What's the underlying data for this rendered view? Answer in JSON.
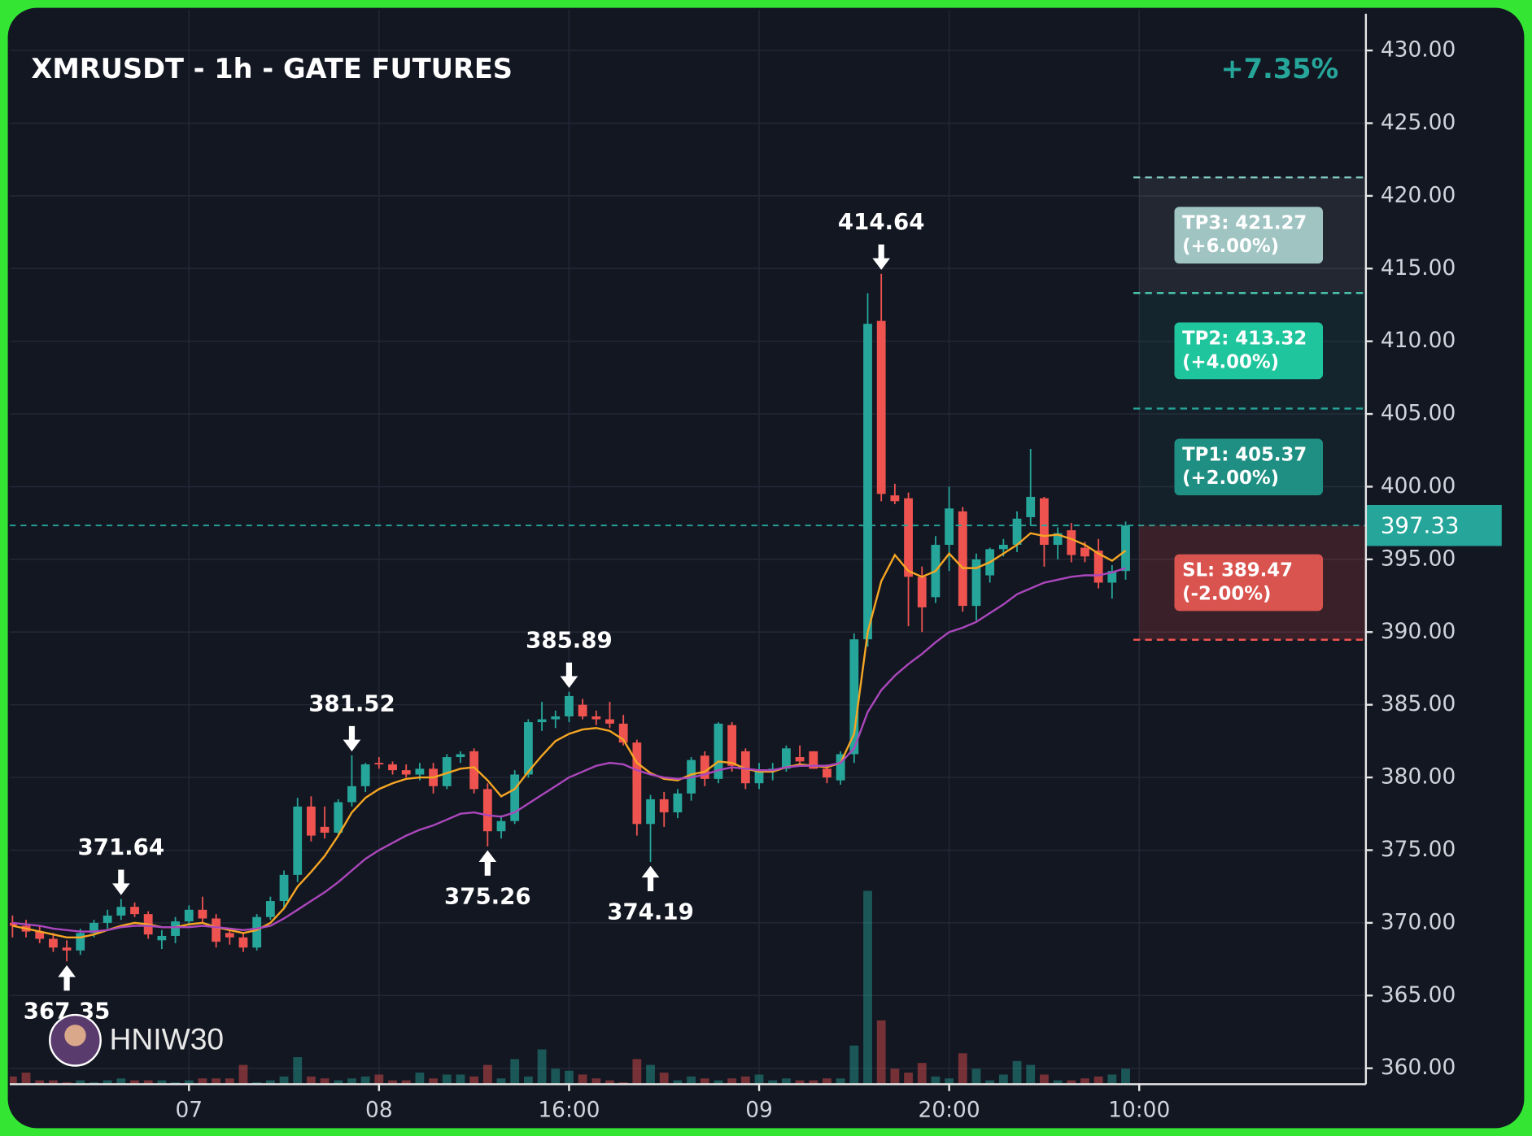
{
  "chart_data": {
    "type": "candlestick",
    "title": "XMRUSDT - 1h - GATE FUTURES",
    "change": "+7.35%",
    "watermark": "HNIW30",
    "up_color": "#26a69a",
    "down_color": "#ef5350",
    "grid": true,
    "xlim": [
      -0.2,
      99.7
    ],
    "xticks": [
      {
        "value": 13,
        "label": "07"
      },
      {
        "value": 27,
        "label": "08"
      },
      {
        "value": 41,
        "label": "16:00"
      },
      {
        "value": 55,
        "label": "09"
      },
      {
        "value": 69,
        "label": "20:00"
      },
      {
        "value": 83,
        "label": "10:00"
      }
    ],
    "ylim": [
      358.9,
      432.8
    ],
    "yticks": [
      {
        "value": 360,
        "label": "360.00"
      },
      {
        "value": 365,
        "label": "365.00"
      },
      {
        "value": 370,
        "label": "370.00"
      },
      {
        "value": 375,
        "label": "375.00"
      },
      {
        "value": 380,
        "label": "380.00"
      },
      {
        "value": 385,
        "label": "385.00"
      },
      {
        "value": 390,
        "label": "390.00"
      },
      {
        "value": 395,
        "label": "395.00"
      },
      {
        "value": 400,
        "label": "400.00"
      },
      {
        "value": 405,
        "label": "405.00"
      },
      {
        "value": 410,
        "label": "410.00"
      },
      {
        "value": 415,
        "label": "415.00"
      },
      {
        "value": 420,
        "label": "420.00"
      },
      {
        "value": 425,
        "label": "425.00"
      },
      {
        "value": 430,
        "label": "430.00"
      }
    ],
    "last": 397.33,
    "candles": [
      {
        "open": 370.0,
        "high": 370.5,
        "low": 369.0,
        "close": 369.8
      },
      {
        "open": 369.8,
        "high": 370.2,
        "low": 369.0,
        "close": 369.4
      },
      {
        "open": 369.4,
        "high": 369.8,
        "low": 368.6,
        "close": 368.9
      },
      {
        "open": 368.9,
        "high": 369.3,
        "low": 368.0,
        "close": 368.3
      },
      {
        "open": 368.3,
        "high": 368.8,
        "low": 367.35,
        "close": 368.1
      },
      {
        "open": 368.1,
        "high": 369.6,
        "low": 367.8,
        "close": 369.3
      },
      {
        "open": 369.3,
        "high": 370.2,
        "low": 369.0,
        "close": 370.0
      },
      {
        "open": 370.0,
        "high": 370.9,
        "low": 369.6,
        "close": 370.5
      },
      {
        "open": 370.5,
        "high": 371.64,
        "low": 370.2,
        "close": 371.1
      },
      {
        "open": 371.1,
        "high": 371.4,
        "low": 370.4,
        "close": 370.6
      },
      {
        "open": 370.6,
        "high": 370.8,
        "low": 368.9,
        "close": 369.2
      },
      {
        "open": 368.8,
        "high": 369.5,
        "low": 368.2,
        "close": 369.1
      },
      {
        "open": 369.1,
        "high": 370.4,
        "low": 368.6,
        "close": 370.1
      },
      {
        "open": 370.1,
        "high": 371.2,
        "low": 369.8,
        "close": 370.9
      },
      {
        "open": 370.9,
        "high": 371.8,
        "low": 370.0,
        "close": 370.3
      },
      {
        "open": 370.3,
        "high": 370.6,
        "low": 368.3,
        "close": 368.7
      },
      {
        "open": 369.3,
        "high": 369.6,
        "low": 368.5,
        "close": 369.0
      },
      {
        "open": 369.0,
        "high": 369.3,
        "low": 368.0,
        "close": 368.3
      },
      {
        "open": 368.3,
        "high": 370.6,
        "low": 368.1,
        "close": 370.4
      },
      {
        "open": 370.4,
        "high": 371.8,
        "low": 370.2,
        "close": 371.5
      },
      {
        "open": 371.5,
        "high": 373.6,
        "low": 371.0,
        "close": 373.3
      },
      {
        "open": 373.3,
        "high": 378.6,
        "low": 372.8,
        "close": 378.0
      },
      {
        "open": 378.0,
        "high": 378.7,
        "low": 375.6,
        "close": 376.0
      },
      {
        "open": 376.6,
        "high": 378.0,
        "low": 375.8,
        "close": 376.2
      },
      {
        "open": 376.2,
        "high": 378.5,
        "low": 376.0,
        "close": 378.3
      },
      {
        "open": 378.3,
        "high": 381.52,
        "low": 378.0,
        "close": 379.4
      },
      {
        "open": 379.4,
        "high": 381.0,
        "low": 379.0,
        "close": 380.9
      },
      {
        "open": 381.0,
        "high": 381.4,
        "low": 380.6,
        "close": 380.9
      },
      {
        "open": 380.9,
        "high": 381.1,
        "low": 380.2,
        "close": 380.5
      },
      {
        "open": 380.5,
        "high": 380.9,
        "low": 380.0,
        "close": 380.2
      },
      {
        "open": 380.2,
        "high": 381.0,
        "low": 379.8,
        "close": 380.6
      },
      {
        "open": 380.6,
        "high": 381.0,
        "low": 378.9,
        "close": 379.4
      },
      {
        "open": 379.4,
        "high": 381.6,
        "low": 379.2,
        "close": 381.4
      },
      {
        "open": 381.4,
        "high": 381.8,
        "low": 381.0,
        "close": 381.6
      },
      {
        "open": 381.8,
        "high": 382.0,
        "low": 378.9,
        "close": 379.2
      },
      {
        "open": 379.2,
        "high": 379.6,
        "low": 375.26,
        "close": 376.3
      },
      {
        "open": 376.3,
        "high": 377.4,
        "low": 375.8,
        "close": 377.0
      },
      {
        "open": 377.0,
        "high": 380.5,
        "low": 376.8,
        "close": 380.2
      },
      {
        "open": 380.2,
        "high": 384.0,
        "low": 380.0,
        "close": 383.8
      },
      {
        "open": 383.8,
        "high": 385.2,
        "low": 383.2,
        "close": 384.0
      },
      {
        "open": 384.0,
        "high": 384.6,
        "low": 383.4,
        "close": 384.2
      },
      {
        "open": 384.2,
        "high": 385.89,
        "low": 383.8,
        "close": 385.6
      },
      {
        "open": 385.0,
        "high": 385.4,
        "low": 384.0,
        "close": 384.2
      },
      {
        "open": 384.2,
        "high": 384.6,
        "low": 383.6,
        "close": 384.0
      },
      {
        "open": 384.0,
        "high": 385.2,
        "low": 383.4,
        "close": 383.7
      },
      {
        "open": 383.7,
        "high": 384.3,
        "low": 382.2,
        "close": 382.4
      },
      {
        "open": 382.4,
        "high": 382.6,
        "low": 376.0,
        "close": 376.8
      },
      {
        "open": 376.8,
        "high": 378.8,
        "low": 374.19,
        "close": 378.5
      },
      {
        "open": 378.5,
        "high": 379.0,
        "low": 376.6,
        "close": 377.6
      },
      {
        "open": 377.6,
        "high": 379.2,
        "low": 377.2,
        "close": 378.9
      },
      {
        "open": 378.9,
        "high": 381.4,
        "low": 378.4,
        "close": 381.2
      },
      {
        "open": 381.5,
        "high": 381.8,
        "low": 379.4,
        "close": 379.9
      },
      {
        "open": 379.9,
        "high": 383.8,
        "low": 379.6,
        "close": 383.7
      },
      {
        "open": 383.6,
        "high": 383.8,
        "low": 380.4,
        "close": 380.8
      },
      {
        "open": 381.8,
        "high": 382.0,
        "low": 379.2,
        "close": 379.6
      },
      {
        "open": 379.6,
        "high": 381.0,
        "low": 379.2,
        "close": 380.5
      },
      {
        "open": 380.5,
        "high": 381.0,
        "low": 379.8,
        "close": 380.6
      },
      {
        "open": 380.6,
        "high": 382.2,
        "low": 380.4,
        "close": 382.0
      },
      {
        "open": 381.4,
        "high": 382.2,
        "low": 380.8,
        "close": 381.1
      },
      {
        "open": 381.8,
        "high": 381.8,
        "low": 380.6,
        "close": 380.6
      },
      {
        "open": 380.6,
        "high": 380.9,
        "low": 379.6,
        "close": 380.0
      },
      {
        "open": 379.8,
        "high": 381.8,
        "low": 379.5,
        "close": 381.6
      },
      {
        "open": 381.6,
        "high": 389.9,
        "low": 381.0,
        "close": 389.5
      },
      {
        "open": 389.5,
        "high": 413.3,
        "low": 389.0,
        "close": 411.2
      },
      {
        "open": 411.4,
        "high": 414.64,
        "low": 399.0,
        "close": 399.5
      },
      {
        "open": 399.4,
        "high": 400.2,
        "low": 398.8,
        "close": 399.0
      },
      {
        "open": 399.2,
        "high": 399.6,
        "low": 390.4,
        "close": 393.8
      },
      {
        "open": 393.8,
        "high": 394.5,
        "low": 390.0,
        "close": 391.7
      },
      {
        "open": 392.4,
        "high": 396.6,
        "low": 392.0,
        "close": 396.0
      },
      {
        "open": 396.0,
        "high": 400.0,
        "low": 394.2,
        "close": 398.5
      },
      {
        "open": 398.3,
        "high": 398.6,
        "low": 391.4,
        "close": 391.8
      },
      {
        "open": 391.8,
        "high": 395.4,
        "low": 390.8,
        "close": 395.0
      },
      {
        "open": 393.9,
        "high": 395.8,
        "low": 393.4,
        "close": 395.7
      },
      {
        "open": 395.7,
        "high": 396.4,
        "low": 395.2,
        "close": 396.0
      },
      {
        "open": 396.0,
        "high": 398.3,
        "low": 395.5,
        "close": 397.8
      },
      {
        "open": 397.9,
        "high": 402.6,
        "low": 397.3,
        "close": 399.3
      },
      {
        "open": 399.2,
        "high": 399.3,
        "low": 394.5,
        "close": 396.0
      },
      {
        "open": 396.0,
        "high": 397.2,
        "low": 395.0,
        "close": 396.8
      },
      {
        "open": 397.0,
        "high": 397.5,
        "low": 394.8,
        "close": 395.3
      },
      {
        "open": 395.8,
        "high": 396.2,
        "low": 394.8,
        "close": 395.2
      },
      {
        "open": 395.6,
        "high": 396.4,
        "low": 393.0,
        "close": 393.4
      },
      {
        "open": 393.4,
        "high": 394.6,
        "low": 392.3,
        "close": 394.2
      },
      {
        "open": 394.2,
        "high": 397.6,
        "low": 393.6,
        "close": 397.33
      }
    ],
    "volume": [
      4,
      6,
      2,
      2,
      1,
      2,
      1,
      2,
      3,
      2,
      2,
      2,
      1,
      2,
      3,
      3,
      3,
      10,
      1,
      2,
      4,
      14,
      4,
      3,
      2,
      3,
      4,
      5,
      2,
      2,
      6,
      3,
      5,
      5,
      4,
      10,
      3,
      13,
      4,
      18,
      8,
      7,
      5,
      3,
      2,
      1,
      13,
      10,
      6,
      2,
      4,
      3,
      2,
      3,
      4,
      5,
      2,
      3,
      2,
      2,
      3,
      3,
      20,
      100,
      33,
      8,
      6,
      11,
      4,
      3,
      16,
      8,
      2,
      5,
      12,
      10,
      5,
      2,
      2,
      3,
      4,
      5,
      8
    ],
    "vlim": [
      0,
      100
    ],
    "lines": [
      {
        "color": "#f5a623",
        "values": [
          369.8,
          369.6,
          369.4,
          369.2,
          369.0,
          369.0,
          369.2,
          369.5,
          369.8,
          370.0,
          369.9,
          369.7,
          369.7,
          369.9,
          370.0,
          369.7,
          369.5,
          369.3,
          369.5,
          370.0,
          371.0,
          372.5,
          373.5,
          374.6,
          376.0,
          377.6,
          378.6,
          379.2,
          379.6,
          379.9,
          380.0,
          380.0,
          380.3,
          380.6,
          380.7,
          379.8,
          378.7,
          379.2,
          380.4,
          381.5,
          382.5,
          383.0,
          383.3,
          383.4,
          383.2,
          382.6,
          381.0,
          380.3,
          379.9,
          379.8,
          380.2,
          380.4,
          381.1,
          381.0,
          380.6,
          380.4,
          380.4,
          380.7,
          380.9,
          380.8,
          380.7,
          381.0,
          383.0,
          390.0,
          393.5,
          395.3,
          394.2,
          393.8,
          394.2,
          395.4,
          394.4,
          394.4,
          394.8,
          395.4,
          396.0,
          396.8,
          396.6,
          396.7,
          396.4,
          396.0,
          395.4,
          394.9,
          395.6
        ]
      },
      {
        "color": "#ab47bc",
        "values": [
          370.0,
          369.9,
          369.8,
          369.6,
          369.5,
          369.4,
          369.4,
          369.5,
          369.7,
          369.8,
          369.8,
          369.7,
          369.7,
          369.7,
          369.8,
          369.7,
          369.6,
          369.5,
          369.6,
          369.8,
          370.3,
          370.9,
          371.5,
          372.1,
          372.8,
          373.6,
          374.4,
          375.0,
          375.5,
          376.0,
          376.4,
          376.7,
          377.1,
          377.5,
          377.6,
          377.4,
          377.3,
          377.6,
          378.2,
          378.8,
          379.4,
          380.0,
          380.4,
          380.8,
          381.0,
          380.9,
          380.5,
          380.2,
          380.0,
          379.9,
          380.0,
          380.2,
          380.5,
          380.7,
          380.6,
          380.5,
          380.5,
          380.7,
          380.8,
          380.8,
          380.8,
          381.0,
          382.0,
          384.5,
          386.0,
          387.0,
          387.8,
          388.5,
          389.3,
          390.0,
          390.3,
          390.7,
          391.3,
          391.9,
          392.6,
          393.0,
          393.4,
          393.6,
          393.8,
          393.9,
          393.9,
          394.1,
          394.4
        ]
      }
    ],
    "markers": [
      {
        "value": 367.35,
        "index": 4,
        "position": "below"
      },
      {
        "value": 371.64,
        "index": 8,
        "position": "above"
      },
      {
        "value": 381.52,
        "index": 25,
        "position": "above"
      },
      {
        "value": 375.26,
        "index": 35,
        "position": "below"
      },
      {
        "value": 385.89,
        "index": 41,
        "position": "above"
      },
      {
        "value": 374.19,
        "index": 47,
        "position": "below"
      },
      {
        "value": 414.64,
        "index": 64,
        "position": "above"
      }
    ],
    "levels": [
      {
        "label": "TP3: 421.27",
        "pct": "(+6.00%)",
        "value": 421.27,
        "color": "#9fc4c2",
        "zone": "rgba(255,255,255,0.07)",
        "line": "#80cbc4"
      },
      {
        "label": "TP2: 413.32",
        "pct": "(+4.00%)",
        "value": 413.32,
        "color": "#1fc59c",
        "zone": "rgba(38,166,154,0.10)",
        "line": "#4dd0b4"
      },
      {
        "label": "TP1: 405.37",
        "pct": "(+2.00%)",
        "value": 405.37,
        "color": "#1e8f82",
        "zone": "rgba(38,166,154,0.07)",
        "line": "#26a69a"
      },
      {
        "label": "SL: 389.47",
        "pct": "(-2.00%)",
        "value": 389.47,
        "color": "#d9534f",
        "zone": "rgba(239,83,80,0.18)",
        "line": "#ef5350"
      }
    ]
  }
}
